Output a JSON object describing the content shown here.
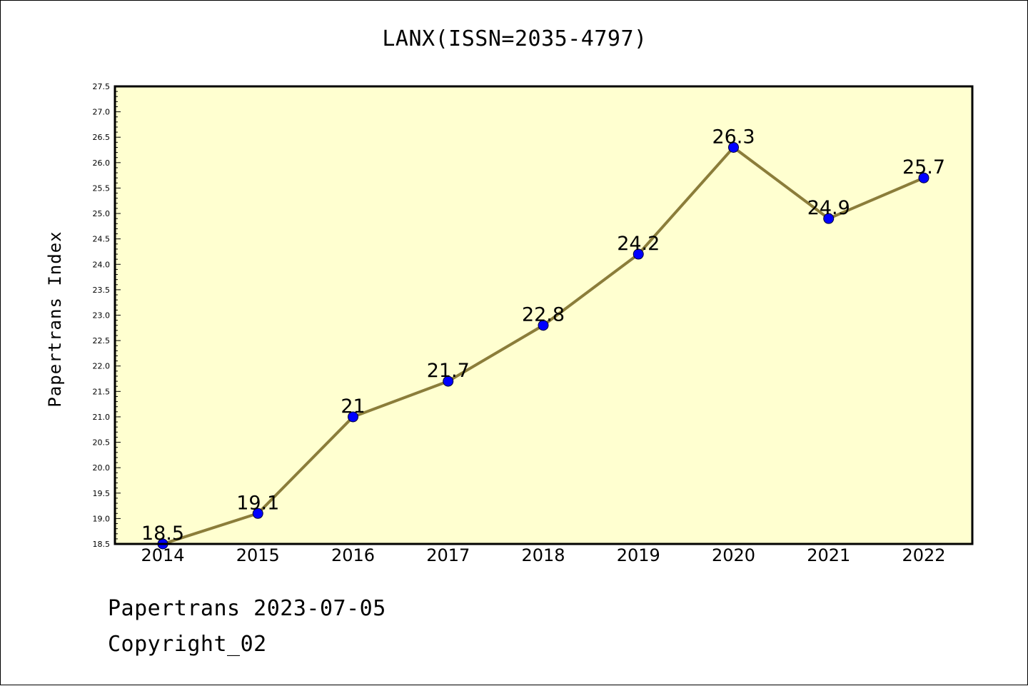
{
  "chart_data": {
    "type": "line",
    "title": "LANX(ISSN=2035-4797)",
    "xlabel": "",
    "ylabel": "Papertrans Index",
    "categories": [
      "2014",
      "2015",
      "2016",
      "2017",
      "2018",
      "2019",
      "2020",
      "2021",
      "2022"
    ],
    "series": [
      {
        "values": [
          18.5,
          19.1,
          21,
          21.7,
          22.8,
          24.2,
          26.3,
          24.9,
          25.7
        ],
        "data_labels": [
          "18.5",
          "19.1",
          "21",
          "21.7",
          "22.8",
          "24.2",
          "26.3",
          "24.9",
          "25.7"
        ]
      }
    ],
    "ylim": [
      18.5,
      27.5
    ],
    "yticks": [
      "18.5",
      "19.0",
      "19.5",
      "20.0",
      "20.5",
      "21.0",
      "21.5",
      "22.0",
      "22.5",
      "23.0",
      "23.5",
      "24.0",
      "24.5",
      "25.0",
      "25.5",
      "26.0",
      "26.5",
      "27.0",
      "27.5"
    ],
    "grid": false,
    "colors": {
      "plot_background": "#ffffd0",
      "line": "#8b7d3a",
      "marker": "#0000ff"
    }
  },
  "footer": {
    "date_text": "Papertrans 2023-07-05",
    "copyright_text": "Copyright_02"
  }
}
